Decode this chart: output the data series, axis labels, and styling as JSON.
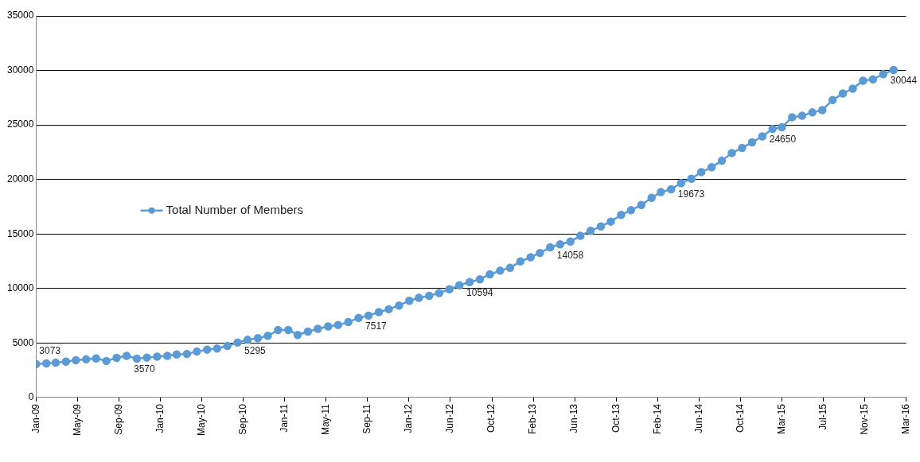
{
  "chart_data": {
    "type": "line",
    "x": [
      "2009-01",
      "2009-02",
      "2009-03",
      "2009-04",
      "2009-05",
      "2009-06",
      "2009-07",
      "2009-08",
      "2009-09",
      "2009-10",
      "2009-11",
      "2009-12",
      "2010-01",
      "2010-02",
      "2010-03",
      "2010-04",
      "2010-05",
      "2010-06",
      "2010-07",
      "2010-08",
      "2010-09",
      "2010-10",
      "2010-11",
      "2010-12",
      "2011-01",
      "2011-02",
      "2011-03",
      "2011-04",
      "2011-05",
      "2011-06",
      "2011-07",
      "2011-08",
      "2011-09",
      "2011-10",
      "2011-11",
      "2011-12",
      "2012-01",
      "2012-02",
      "2012-03",
      "2012-04",
      "2012-05",
      "2012-06",
      "2012-07",
      "2012-08",
      "2012-09",
      "2012-10",
      "2012-11",
      "2012-12",
      "2013-01",
      "2013-02",
      "2013-03",
      "2013-04",
      "2013-05",
      "2013-06",
      "2013-07",
      "2013-08",
      "2013-09",
      "2013-10",
      "2013-11",
      "2013-12",
      "2014-01",
      "2014-02",
      "2014-03",
      "2014-04",
      "2014-05",
      "2014-06",
      "2014-07",
      "2014-08",
      "2014-09",
      "2014-10",
      "2014-11",
      "2014-12",
      "2015-01",
      "2015-02",
      "2015-03",
      "2015-04",
      "2015-05",
      "2015-06",
      "2015-07",
      "2015-08",
      "2015-09",
      "2015-10",
      "2015-11",
      "2015-12",
      "2016-01",
      "2016-02"
    ],
    "series": [
      {
        "name": "Total Number of Members",
        "color": "#5b9bd5",
        "values": [
          3073,
          3130,
          3200,
          3300,
          3430,
          3510,
          3590,
          3360,
          3650,
          3830,
          3570,
          3670,
          3750,
          3830,
          3960,
          4000,
          4220,
          4400,
          4500,
          4740,
          5050,
          5295,
          5450,
          5660,
          6190,
          6200,
          5740,
          6050,
          6310,
          6530,
          6660,
          6920,
          7310,
          7517,
          7840,
          8100,
          8440,
          8880,
          9150,
          9330,
          9590,
          9930,
          10300,
          10594,
          10850,
          11300,
          11640,
          11900,
          12480,
          12870,
          13260,
          13780,
          14058,
          14310,
          14830,
          15300,
          15700,
          16140,
          16750,
          17190,
          17660,
          18320,
          18840,
          19100,
          19673,
          20070,
          20680,
          21120,
          21720,
          22430,
          22900,
          23400,
          23950,
          24650,
          24790,
          25710,
          25840,
          26150,
          26360,
          27280,
          27890,
          28330,
          29060,
          29190,
          29660,
          30044
        ],
        "value_labels": [
          "3073",
          null,
          null,
          null,
          null,
          null,
          null,
          null,
          null,
          null,
          "3570",
          null,
          null,
          null,
          null,
          null,
          null,
          null,
          null,
          null,
          null,
          "5295",
          null,
          null,
          null,
          null,
          null,
          null,
          null,
          null,
          null,
          null,
          null,
          "7517",
          null,
          null,
          null,
          null,
          null,
          null,
          null,
          null,
          null,
          "10594",
          null,
          null,
          null,
          null,
          null,
          null,
          null,
          null,
          "14058",
          null,
          null,
          null,
          null,
          null,
          null,
          null,
          null,
          null,
          null,
          null,
          "19673",
          null,
          null,
          null,
          null,
          null,
          null,
          null,
          null,
          "24650",
          null,
          null,
          null,
          null,
          null,
          null,
          null,
          null,
          null,
          null,
          null,
          "30044"
        ]
      }
    ],
    "xlim": [
      "2009-01-01",
      "2016-03-10"
    ],
    "xticks": [
      {
        "value": "2009-01-01",
        "label": "Jan-09"
      },
      {
        "value": "2009-05-06",
        "label": "May-09"
      },
      {
        "value": "2009-09-08",
        "label": "Sep-09"
      },
      {
        "value": "2010-01-11",
        "label": "Jan-10"
      },
      {
        "value": "2010-05-16",
        "label": "May-10"
      },
      {
        "value": "2010-09-18",
        "label": "Sep-10"
      },
      {
        "value": "2011-01-21",
        "label": "Jan-11"
      },
      {
        "value": "2011-05-26",
        "label": "May-11"
      },
      {
        "value": "2011-09-28",
        "label": "Sep-11"
      },
      {
        "value": "2012-01-31",
        "label": "Jan-12"
      },
      {
        "value": "2012-06-04",
        "label": "Jun-12"
      },
      {
        "value": "2012-10-07",
        "label": "Oct-12"
      },
      {
        "value": "2013-02-09",
        "label": "Feb-13"
      },
      {
        "value": "2013-06-14",
        "label": "Jun-13"
      },
      {
        "value": "2013-10-17",
        "label": "Oct-13"
      },
      {
        "value": "2014-02-19",
        "label": "Feb-14"
      },
      {
        "value": "2014-06-24",
        "label": "Jun-14"
      },
      {
        "value": "2014-10-27",
        "label": "Oct-14"
      },
      {
        "value": "2015-03-01",
        "label": "Mar-15"
      },
      {
        "value": "2015-07-04",
        "label": "Jul-15"
      },
      {
        "value": "2015-11-06",
        "label": "Nov-15"
      },
      {
        "value": "2016-03-10",
        "label": "Mar-16"
      }
    ],
    "ylim": [
      0,
      35000
    ],
    "yticks": [
      0,
      5000,
      10000,
      15000,
      20000,
      25000,
      30000,
      35000
    ],
    "grid": "y",
    "legend": "left",
    "marker": "circle",
    "line_style": "solid"
  }
}
